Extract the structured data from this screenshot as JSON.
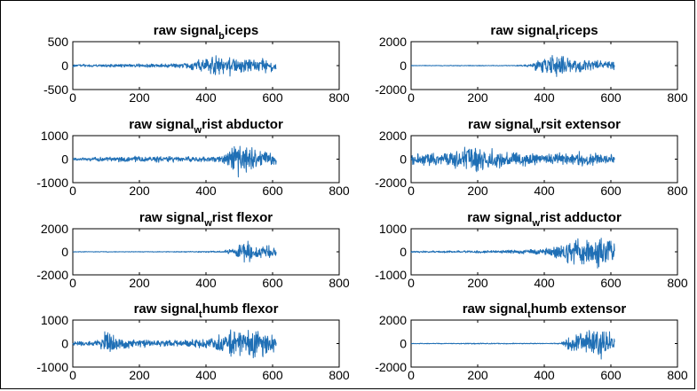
{
  "chart_data": [
    {
      "type": "line",
      "title": {
        "main": "raw signal",
        "sub": "b",
        "rest": "iceps"
      },
      "xlim": [
        0,
        800
      ],
      "xticks": [
        0,
        200,
        400,
        600,
        800
      ],
      "ylim": [
        -500,
        500
      ],
      "yticks": [
        -500,
        0,
        500
      ],
      "series": [
        {
          "color": "#1f6fb5",
          "n_samples": 612,
          "envelope": [
            [
              0,
              30
            ],
            [
              100,
              35
            ],
            [
              200,
              40
            ],
            [
              300,
              50
            ],
            [
              350,
              80
            ],
            [
              400,
              180
            ],
            [
              440,
              260
            ],
            [
              500,
              200
            ],
            [
              560,
              170
            ],
            [
              612,
              150
            ]
          ]
        }
      ]
    },
    {
      "type": "line",
      "title": {
        "main": "raw signal",
        "sub": "t",
        "rest": "riceps"
      },
      "xlim": [
        0,
        800
      ],
      "xticks": [
        0,
        200,
        400,
        600,
        800
      ],
      "ylim": [
        -2000,
        2000
      ],
      "yticks": [
        -2000,
        0,
        2000
      ],
      "series": [
        {
          "color": "#1f6fb5",
          "n_samples": 612,
          "envelope": [
            [
              0,
              30
            ],
            [
              300,
              40
            ],
            [
              350,
              100
            ],
            [
              380,
              600
            ],
            [
              410,
              1000
            ],
            [
              440,
              1300
            ],
            [
              480,
              700
            ],
            [
              540,
              500
            ],
            [
              600,
              400
            ],
            [
              612,
              350
            ]
          ]
        }
      ]
    },
    {
      "type": "line",
      "title": {
        "main": "raw signal",
        "sub": "w",
        "rest": "rist abductor"
      },
      "xlim": [
        0,
        800
      ],
      "xticks": [
        0,
        200,
        400,
        600,
        800
      ],
      "ylim": [
        -1000,
        1000
      ],
      "yticks": [
        -1000,
        0,
        1000
      ],
      "series": [
        {
          "color": "#1f6fb5",
          "n_samples": 612,
          "envelope": [
            [
              0,
              60
            ],
            [
              100,
              120
            ],
            [
              200,
              150
            ],
            [
              300,
              140
            ],
            [
              400,
              120
            ],
            [
              460,
              250
            ],
            [
              500,
              950
            ],
            [
              520,
              700
            ],
            [
              560,
              400
            ],
            [
              612,
              300
            ]
          ]
        }
      ]
    },
    {
      "type": "line",
      "title": {
        "main": "raw signal",
        "sub": "w",
        "rest": "rsit extensor"
      },
      "xlim": [
        0,
        800
      ],
      "xticks": [
        0,
        200,
        400,
        600,
        800
      ],
      "ylim": [
        -2000,
        2000
      ],
      "yticks": [
        -2000,
        0,
        2000
      ],
      "series": [
        {
          "color": "#1f6fb5",
          "n_samples": 612,
          "envelope": [
            [
              0,
              500
            ],
            [
              100,
              700
            ],
            [
              200,
              1400
            ],
            [
              250,
              900
            ],
            [
              300,
              700
            ],
            [
              400,
              500
            ],
            [
              500,
              700
            ],
            [
              550,
              600
            ],
            [
              612,
              400
            ]
          ]
        }
      ]
    },
    {
      "type": "line",
      "title": {
        "main": "raw signal",
        "sub": "w",
        "rest": "rist flexor"
      },
      "xlim": [
        0,
        800
      ],
      "xticks": [
        0,
        200,
        400,
        600,
        800
      ],
      "ylim": [
        -2000,
        2000
      ],
      "yticks": [
        -2000,
        0,
        2000
      ],
      "series": [
        {
          "color": "#1f6fb5",
          "n_samples": 612,
          "envelope": [
            [
              0,
              30
            ],
            [
              300,
              40
            ],
            [
              450,
              80
            ],
            [
              480,
              400
            ],
            [
              500,
              900
            ],
            [
              520,
              1200
            ],
            [
              560,
              700
            ],
            [
              612,
              500
            ]
          ]
        }
      ]
    },
    {
      "type": "line",
      "title": {
        "main": "raw signal",
        "sub": "w",
        "rest": "rist adductor"
      },
      "xlim": [
        0,
        800
      ],
      "xticks": [
        0,
        200,
        400,
        600,
        800
      ],
      "ylim": [
        -1000,
        1000
      ],
      "yticks": [
        -1000,
        0,
        1000
      ],
      "series": [
        {
          "color": "#1f6fb5",
          "n_samples": 612,
          "envelope": [
            [
              0,
              40
            ],
            [
              200,
              60
            ],
            [
              300,
              80
            ],
            [
              400,
              150
            ],
            [
              440,
              400
            ],
            [
              500,
              600
            ],
            [
              560,
              750
            ],
            [
              612,
              800
            ]
          ]
        }
      ]
    },
    {
      "type": "line",
      "title": {
        "main": "raw signal",
        "sub": "t",
        "rest": "humb flexor"
      },
      "xlim": [
        0,
        800
      ],
      "xticks": [
        0,
        200,
        400,
        600,
        800
      ],
      "ylim": [
        -1000,
        1000
      ],
      "yticks": [
        -1000,
        0,
        1000
      ],
      "series": [
        {
          "color": "#1f6fb5",
          "n_samples": 612,
          "envelope": [
            [
              0,
              80
            ],
            [
              80,
              150
            ],
            [
              100,
              750
            ],
            [
              130,
              300
            ],
            [
              200,
              200
            ],
            [
              300,
              150
            ],
            [
              400,
              250
            ],
            [
              450,
              450
            ],
            [
              480,
              750
            ],
            [
              520,
              600
            ],
            [
              560,
              700
            ],
            [
              612,
              400
            ]
          ]
        }
      ]
    },
    {
      "type": "line",
      "title": {
        "main": "raw signal",
        "sub": "t",
        "rest": "humb extensor"
      },
      "xlim": [
        0,
        800
      ],
      "xticks": [
        0,
        200,
        400,
        600,
        800
      ],
      "ylim": [
        -2000,
        2000
      ],
      "yticks": [
        -2000,
        0,
        2000
      ],
      "series": [
        {
          "color": "#1f6fb5",
          "n_samples": 612,
          "envelope": [
            [
              0,
              30
            ],
            [
              100,
              40
            ],
            [
              200,
              50
            ],
            [
              300,
              40
            ],
            [
              400,
              40
            ],
            [
              450,
              60
            ],
            [
              480,
              700
            ],
            [
              520,
              1300
            ],
            [
              560,
              1600
            ],
            [
              600,
              1000
            ],
            [
              612,
              800
            ]
          ]
        }
      ]
    }
  ]
}
